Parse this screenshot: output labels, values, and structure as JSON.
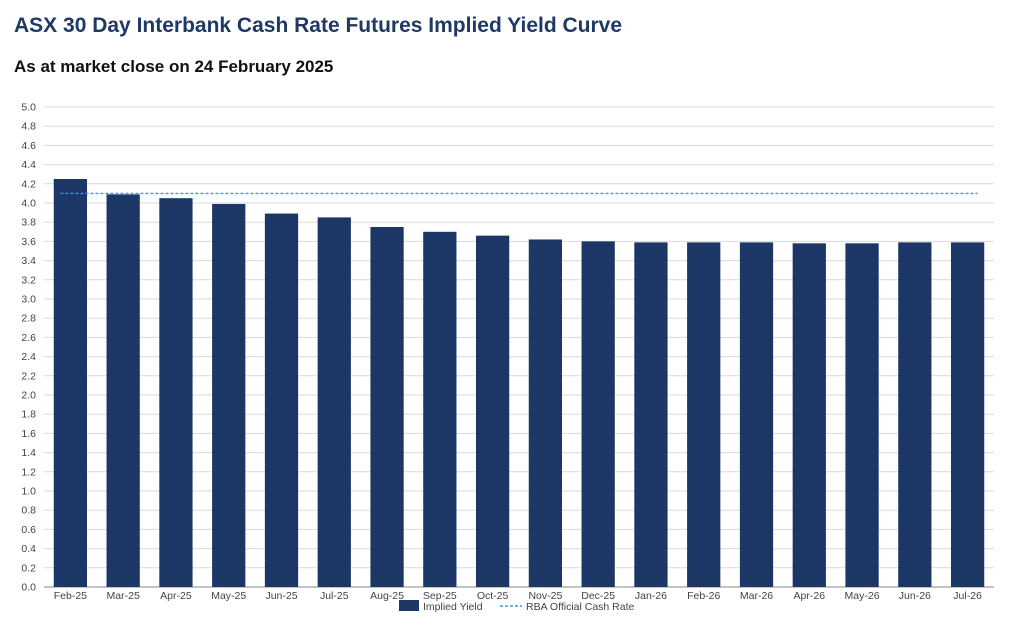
{
  "title": "ASX 30 Day Interbank Cash Rate Futures Implied Yield Curve",
  "subtitle": "As at market close on 24 February 2025",
  "colors": {
    "bar": "#1c3666",
    "rba_line": "#3a9ad9",
    "grid": "#d9d9d9",
    "title": "#1f3864"
  },
  "chart_data": {
    "type": "bar",
    "categories": [
      "Feb-25",
      "Mar-25",
      "Apr-25",
      "May-25",
      "Jun-25",
      "Jul-25",
      "Aug-25",
      "Sep-25",
      "Oct-25",
      "Nov-25",
      "Dec-25",
      "Jan-26",
      "Feb-26",
      "Mar-26",
      "Apr-26",
      "May-26",
      "Jun-26",
      "Jul-26"
    ],
    "series": [
      {
        "name": "Implied Yield",
        "type": "bar",
        "values": [
          4.25,
          4.09,
          4.05,
          3.99,
          3.89,
          3.85,
          3.75,
          3.7,
          3.66,
          3.62,
          3.6,
          3.59,
          3.59,
          3.59,
          3.58,
          3.58,
          3.59,
          3.59
        ]
      },
      {
        "name": "RBA Official Cash Rate",
        "type": "line",
        "style": "dashed",
        "value": 4.1
      }
    ],
    "ylim": [
      0,
      5.0
    ],
    "ystep": 0.2,
    "yticks": [
      "0.0",
      "0.2",
      "0.4",
      "0.6",
      "0.8",
      "1.0",
      "1.2",
      "1.4",
      "1.6",
      "1.8",
      "2.0",
      "2.2",
      "2.4",
      "2.6",
      "2.8",
      "3.0",
      "3.2",
      "3.4",
      "3.6",
      "3.8",
      "4.0",
      "4.2",
      "4.4",
      "4.6",
      "4.8",
      "5.0"
    ],
    "grid": true,
    "legend": "bottom-center"
  }
}
